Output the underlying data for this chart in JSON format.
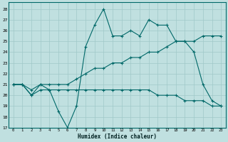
{
  "xlabel": "Humidex (Indice chaleur)",
  "background_color": "#c0e0e0",
  "grid_color": "#a0c8c8",
  "line_color": "#006868",
  "xlim": [
    -0.5,
    23.5
  ],
  "ylim": [
    17,
    28.6
  ],
  "yticks": [
    17,
    18,
    19,
    20,
    21,
    22,
    23,
    24,
    25,
    26,
    27,
    28
  ],
  "xticks": [
    0,
    1,
    2,
    3,
    4,
    5,
    6,
    7,
    8,
    9,
    10,
    11,
    12,
    13,
    14,
    15,
    16,
    17,
    18,
    19,
    20,
    21,
    22,
    23
  ],
  "series1_x": [
    0,
    1,
    2,
    3,
    4,
    5,
    6,
    7,
    8,
    9,
    10,
    11,
    12,
    13,
    14,
    15,
    16,
    17,
    18,
    19,
    20,
    21,
    22,
    23
  ],
  "series1_y": [
    21,
    21,
    20,
    21,
    20.5,
    18.5,
    17,
    19,
    24.5,
    26.5,
    28,
    25.5,
    25.5,
    26,
    25.5,
    27,
    26.5,
    26.5,
    25,
    25,
    24,
    21,
    19.5,
    19
  ],
  "series2_x": [
    0,
    1,
    2,
    3,
    4,
    5,
    6,
    7,
    8,
    9,
    10,
    11,
    12,
    13,
    14,
    15,
    16,
    17,
    18,
    19,
    20,
    21,
    22,
    23
  ],
  "series2_y": [
    21,
    21,
    20.5,
    21,
    21,
    21,
    21,
    21.5,
    22,
    22.5,
    22.5,
    23,
    23,
    23.5,
    23.5,
    24,
    24,
    24.5,
    25,
    25,
    25,
    25.5,
    25.5,
    25.5
  ],
  "series3_x": [
    0,
    1,
    2,
    3,
    4,
    5,
    6,
    7,
    8,
    9,
    10,
    11,
    12,
    13,
    14,
    15,
    16,
    17,
    18,
    19,
    20,
    21,
    22,
    23
  ],
  "series3_y": [
    21,
    21,
    20,
    20.5,
    20.5,
    20.5,
    20.5,
    20.5,
    20.5,
    20.5,
    20.5,
    20.5,
    20.5,
    20.5,
    20.5,
    20.5,
    20,
    20,
    20,
    19.5,
    19.5,
    19.5,
    19,
    19
  ]
}
